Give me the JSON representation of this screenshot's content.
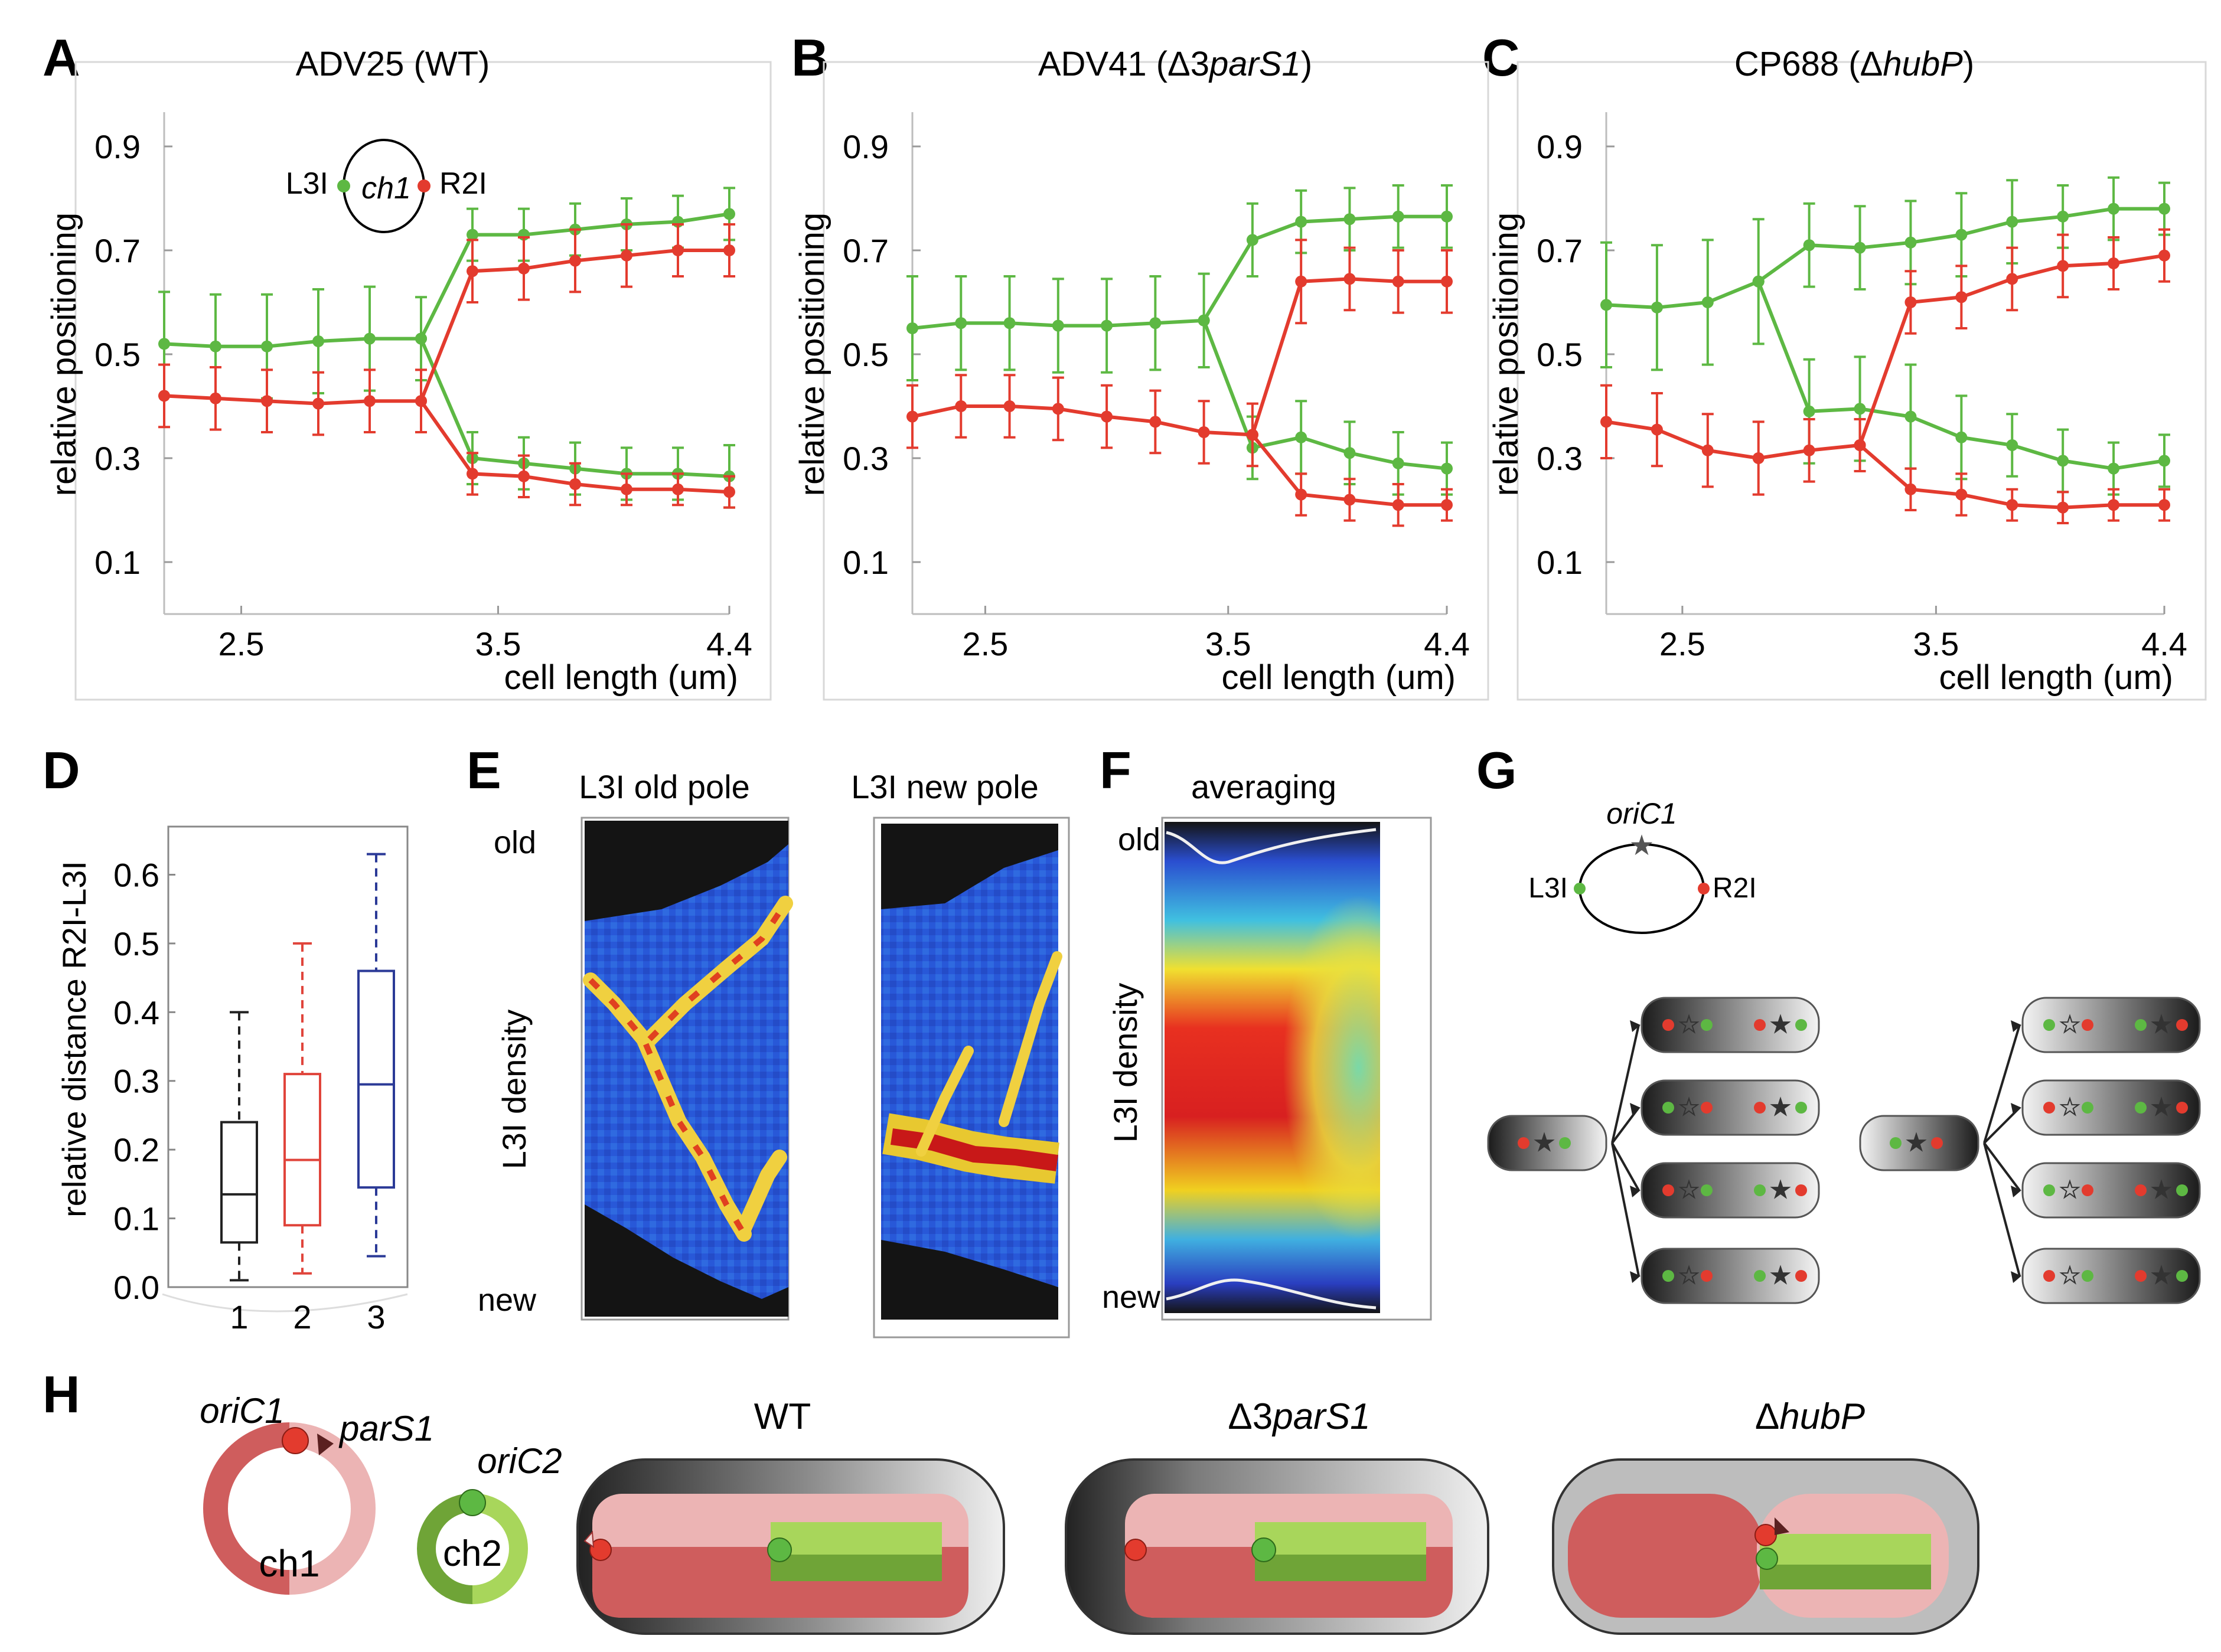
{
  "colors": {
    "green": "#5db843",
    "red": "#e33b2e",
    "axis": "#000000",
    "box1": "#222222",
    "box2": "#e0443b",
    "box3": "#2b3a97",
    "grid": "#cfcfcf",
    "chr1dark": "#cf5d5d",
    "chr1light": "#ecb4b4",
    "chr2dark": "#6fa437",
    "chr2light": "#a8d65b"
  },
  "panel_letters": [
    "A",
    "B",
    "C",
    "D",
    "E",
    "F",
    "G",
    "H"
  ],
  "chart_data": [
    {
      "type": "line",
      "panel": "A",
      "title": "ADV25 (WT)",
      "xlabel": "cell length (um)",
      "ylabel": "relative positioning",
      "xlim": [
        2.2,
        4.4
      ],
      "ylim": [
        0,
        1
      ],
      "xticks": [
        "2.5",
        "3.5",
        "4.4"
      ],
      "yticks": [
        "0.9",
        "0.7",
        "0.5",
        "0.3",
        "0.1"
      ],
      "inset": {
        "left": "L3I",
        "center": "ch1",
        "right": "R2I"
      },
      "x": [
        2.2,
        2.4,
        2.6,
        2.8,
        3.0,
        3.2,
        3.4,
        3.6,
        3.8,
        4.0,
        4.2,
        4.4
      ],
      "series": [
        {
          "name": "L3I",
          "color": "green",
          "values": [
            0.52,
            0.515,
            0.515,
            0.525,
            0.53,
            0.53,
            null,
            null,
            null,
            null,
            null,
            null
          ],
          "errors": [
            0.1,
            0.1,
            0.1,
            0.1,
            0.1,
            0.08,
            0,
            0,
            0,
            0,
            0,
            0
          ]
        },
        {
          "name": "L3I",
          "color": "green",
          "values": [
            null,
            null,
            null,
            null,
            null,
            0.53,
            0.73,
            0.73,
            0.74,
            0.75,
            0.755,
            0.77
          ],
          "errors": [
            0,
            0,
            0,
            0,
            0,
            0,
            0.05,
            0.05,
            0.05,
            0.05,
            0.05,
            0.05
          ]
        },
        {
          "name": "L3I",
          "color": "green",
          "values": [
            null,
            null,
            null,
            null,
            null,
            0.53,
            0.3,
            0.29,
            0.28,
            0.27,
            0.27,
            0.265
          ],
          "errors": [
            0,
            0,
            0,
            0,
            0,
            0,
            0.05,
            0.05,
            0.05,
            0.05,
            0.05,
            0.06
          ]
        },
        {
          "name": "R2I",
          "color": "red",
          "values": [
            0.42,
            0.415,
            0.41,
            0.405,
            0.41,
            0.41,
            null,
            null,
            null,
            null,
            null,
            null
          ],
          "errors": [
            0.06,
            0.06,
            0.06,
            0.06,
            0.06,
            0.06,
            0,
            0,
            0,
            0,
            0,
            0
          ]
        },
        {
          "name": "R2I",
          "color": "red",
          "values": [
            null,
            null,
            null,
            null,
            null,
            0.41,
            0.66,
            0.665,
            0.68,
            0.69,
            0.7,
            0.7
          ],
          "errors": [
            0,
            0,
            0,
            0,
            0,
            0,
            0.06,
            0.06,
            0.06,
            0.06,
            0.05,
            0.05
          ]
        },
        {
          "name": "R2I",
          "color": "red",
          "values": [
            null,
            null,
            null,
            null,
            null,
            0.41,
            0.27,
            0.265,
            0.25,
            0.24,
            0.24,
            0.235
          ],
          "errors": [
            0,
            0,
            0,
            0,
            0,
            0,
            0.04,
            0.04,
            0.04,
            0.03,
            0.03,
            0.03
          ]
        }
      ]
    },
    {
      "type": "line",
      "panel": "B",
      "title_prefix": "ADV41 (Δ3",
      "title_italic": "parS1",
      "title_suffix": ")",
      "xlabel": "cell length (um)",
      "ylabel": "relative positioning",
      "xlim": [
        2.2,
        4.4
      ],
      "ylim": [
        0,
        1
      ],
      "xticks": [
        "2.5",
        "3.5",
        "4.4"
      ],
      "yticks": [
        "0.9",
        "0.7",
        "0.5",
        "0.3",
        "0.1"
      ],
      "x": [
        2.2,
        2.4,
        2.6,
        2.8,
        3.0,
        3.2,
        3.4,
        3.6,
        3.8,
        4.0,
        4.2,
        4.4
      ],
      "series": [
        {
          "name": "L3I",
          "color": "green",
          "values": [
            0.55,
            0.56,
            0.56,
            0.555,
            0.555,
            0.56,
            0.565,
            null,
            null,
            null,
            null,
            null
          ],
          "errors": [
            0.1,
            0.09,
            0.09,
            0.09,
            0.09,
            0.09,
            0.09,
            0,
            0,
            0,
            0,
            0
          ]
        },
        {
          "name": "L3I",
          "color": "green",
          "values": [
            null,
            null,
            null,
            null,
            null,
            null,
            0.565,
            0.72,
            0.755,
            0.76,
            0.765,
            0.765
          ],
          "errors": [
            0,
            0,
            0,
            0,
            0,
            0,
            0,
            0.07,
            0.06,
            0.06,
            0.06,
            0.06
          ]
        },
        {
          "name": "L3I",
          "color": "green",
          "values": [
            null,
            null,
            null,
            null,
            null,
            null,
            0.565,
            0.32,
            0.34,
            0.31,
            0.29,
            0.28
          ],
          "errors": [
            0,
            0,
            0,
            0,
            0,
            0,
            0,
            0.06,
            0.07,
            0.06,
            0.06,
            0.05
          ]
        },
        {
          "name": "R2I",
          "color": "red",
          "values": [
            0.38,
            0.4,
            0.4,
            0.395,
            0.38,
            0.37,
            0.35,
            0.345,
            null,
            null,
            null,
            null
          ],
          "errors": [
            0.06,
            0.06,
            0.06,
            0.06,
            0.06,
            0.06,
            0.06,
            0.06,
            0,
            0,
            0,
            0
          ]
        },
        {
          "name": "R2I",
          "color": "red",
          "values": [
            null,
            null,
            null,
            null,
            null,
            null,
            null,
            0.345,
            0.64,
            0.645,
            0.64,
            0.64
          ],
          "errors": [
            0,
            0,
            0,
            0,
            0,
            0,
            0,
            0,
            0.08,
            0.06,
            0.06,
            0.06
          ]
        },
        {
          "name": "R2I",
          "color": "red",
          "values": [
            null,
            null,
            null,
            null,
            null,
            null,
            null,
            0.345,
            0.23,
            0.22,
            0.21,
            0.21
          ],
          "errors": [
            0,
            0,
            0,
            0,
            0,
            0,
            0,
            0,
            0.04,
            0.04,
            0.04,
            0.03
          ]
        }
      ]
    },
    {
      "type": "line",
      "panel": "C",
      "title_prefix": "CP688 (Δ",
      "title_italic": "hubP",
      "title_suffix": ")",
      "xlabel": "cell length (um)",
      "ylabel": "relative positioning",
      "xlim": [
        2.2,
        4.4
      ],
      "ylim": [
        0,
        1
      ],
      "xticks": [
        "2.5",
        "3.5",
        "4.4"
      ],
      "yticks": [
        "0.9",
        "0.7",
        "0.5",
        "0.3",
        "0.1"
      ],
      "x": [
        2.2,
        2.4,
        2.6,
        2.8,
        3.0,
        3.2,
        3.4,
        3.6,
        3.8,
        4.0,
        4.2,
        4.4
      ],
      "series": [
        {
          "name": "L3I",
          "color": "green",
          "values": [
            0.595,
            0.59,
            0.6,
            0.64,
            null,
            null,
            null,
            null,
            null,
            null,
            null,
            null
          ],
          "errors": [
            0.12,
            0.12,
            0.12,
            0.12,
            0,
            0,
            0,
            0,
            0,
            0,
            0,
            0
          ]
        },
        {
          "name": "L3I",
          "color": "green",
          "values": [
            null,
            null,
            null,
            0.64,
            0.71,
            0.705,
            0.715,
            0.73,
            0.755,
            0.765,
            0.78,
            0.78
          ],
          "errors": [
            0,
            0,
            0,
            0,
            0.08,
            0.08,
            0.08,
            0.08,
            0.08,
            0.06,
            0.06,
            0.05
          ]
        },
        {
          "name": "L3I",
          "color": "green",
          "values": [
            null,
            null,
            null,
            0.64,
            0.39,
            0.395,
            0.38,
            0.34,
            0.325,
            0.295,
            0.28,
            0.295
          ],
          "errors": [
            0,
            0,
            0,
            0,
            0.1,
            0.1,
            0.1,
            0.08,
            0.06,
            0.06,
            0.05,
            0.05
          ]
        },
        {
          "name": "R2I",
          "color": "red",
          "values": [
            0.37,
            0.355,
            0.315,
            0.3,
            0.315,
            0.325,
            null,
            null,
            null,
            null,
            null,
            null
          ],
          "errors": [
            0.07,
            0.07,
            0.07,
            0.07,
            0.06,
            0.05,
            0,
            0,
            0,
            0,
            0,
            0
          ]
        },
        {
          "name": "R2I",
          "color": "red",
          "values": [
            null,
            null,
            null,
            null,
            null,
            0.325,
            0.6,
            0.61,
            0.645,
            0.67,
            0.675,
            0.69
          ],
          "errors": [
            0,
            0,
            0,
            0,
            0,
            0,
            0.06,
            0.06,
            0.06,
            0.06,
            0.05,
            0.05
          ]
        },
        {
          "name": "R2I",
          "color": "red",
          "values": [
            null,
            null,
            null,
            null,
            null,
            0.325,
            0.24,
            0.23,
            0.21,
            0.205,
            0.21,
            0.21
          ],
          "errors": [
            0,
            0,
            0,
            0,
            0,
            0,
            0.04,
            0.04,
            0.03,
            0.03,
            0.03,
            0.03
          ]
        }
      ]
    },
    {
      "type": "box",
      "panel": "D",
      "ylabel": "relative distance R2I-L3I",
      "categories": [
        "1",
        "2",
        "3"
      ],
      "yticks": [
        "0.6",
        "0.5",
        "0.4",
        "0.3",
        "0.2",
        "0.1",
        "0.0"
      ],
      "ylim": [
        0,
        0.67
      ],
      "boxes": [
        {
          "name": "1",
          "color": "box1",
          "min": 0.01,
          "q1": 0.065,
          "median": 0.135,
          "q3": 0.24,
          "max": 0.4
        },
        {
          "name": "2",
          "color": "box2",
          "min": 0.02,
          "q1": 0.09,
          "median": 0.185,
          "q3": 0.31,
          "max": 0.5
        },
        {
          "name": "3",
          "color": "box3",
          "min": 0.045,
          "q1": 0.145,
          "median": 0.295,
          "q3": 0.46,
          "max": 0.63
        }
      ]
    }
  ],
  "panelE": {
    "old": "old",
    "new": "new",
    "ylabel": "L3I density",
    "title1": "L3I old pole",
    "title2": "L3I new pole"
  },
  "panelF": {
    "title": "averaging",
    "old": "old",
    "new": "new",
    "ylabel": "L3I density"
  },
  "panelG": {
    "ori": "oriC1",
    "left": "L3I",
    "right": "R2I"
  },
  "panelH": {
    "oric1": "oriC1",
    "pars1": "parS1",
    "oric2": "oriC2",
    "ch1": "ch1",
    "ch2": "ch2",
    "wt": "WT",
    "pars_prefix": "Δ3",
    "pars_italic": "parS1",
    "hub_prefix": "Δ",
    "hub_italic": "hubP"
  }
}
